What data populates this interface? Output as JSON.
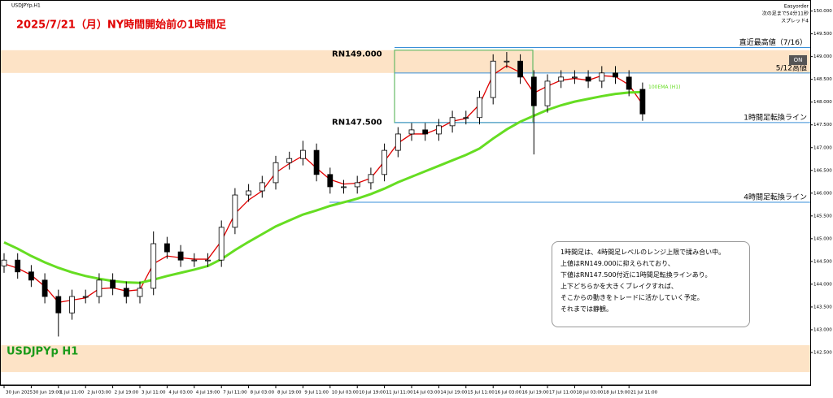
{
  "chart_data": {
    "type": "candlestick",
    "symbol": "USDJPYp,H1",
    "title": "2025/7/21（月）NY時間開始前の1時間足",
    "watermark": "USDJPYp H1",
    "top_right": [
      "Easyorder",
      "次の足まで54分11秒",
      "スプレッド4"
    ],
    "button": "ON",
    "ylim": [
      142.0,
      150.1
    ],
    "yticks": [
      {
        "value": 142.5,
        "label": "142.500"
      },
      {
        "value": 143.0,
        "label": "143.000"
      },
      {
        "value": 143.5,
        "label": "143.500"
      },
      {
        "value": 144.0,
        "label": "144.000"
      },
      {
        "value": 144.5,
        "label": "144.500"
      },
      {
        "value": 145.0,
        "label": "145.000"
      },
      {
        "value": 145.5,
        "label": "145.500"
      },
      {
        "value": 146.0,
        "label": "146.000"
      },
      {
        "value": 146.5,
        "label": "146.500"
      },
      {
        "value": 147.0,
        "label": "147.000"
      },
      {
        "value": 147.5,
        "label": "147.500"
      },
      {
        "value": 148.0,
        "label": "148.000"
      },
      {
        "value": 148.5,
        "label": "148.500"
      },
      {
        "value": 149.0,
        "label": "149.000"
      },
      {
        "value": 149.5,
        "label": "149.500"
      },
      {
        "value": 150.0,
        "label": "150.000"
      }
    ],
    "x_labels": [
      "30 Jun 2025",
      "30 Jun 19:00",
      "1 Jul 11:00",
      "2 Jul 03:00",
      "2 Jul 19:00",
      "3 Jul 11:00",
      "4 Jul 03:00",
      "4 Jul 19:00",
      "7 Jul 11:00",
      "8 Jul 03:00",
      "8 Jul 19:00",
      "9 Jul 11:00",
      "10 Jul 03:00",
      "10 Jul 19:00",
      "11 Jul 11:00",
      "14 Jul 03:00",
      "14 Jul 19:00",
      "15 Jul 11:00",
      "16 Jul 03:00",
      "16 Jul 19:00",
      "17 Jul 11:00",
      "18 Jul 03:00",
      "18 Jul 19:00",
      "21 Jul 11:00"
    ],
    "open": [
      144.4,
      144.53,
      144.27,
      144.09,
      143.73,
      143.37,
      143.73,
      143.73,
      144.09,
      143.91,
      143.73,
      143.91,
      144.89,
      144.71,
      144.53,
      144.53,
      144.53,
      145.25,
      145.96,
      146.05,
      146.23,
      146.67,
      146.76,
      146.94,
      146.41,
      146.14,
      146.14,
      146.23,
      146.41,
      146.94,
      147.3,
      147.39,
      147.3,
      147.48,
      147.66,
      147.66,
      148.1,
      148.9,
      148.9,
      148.55,
      147.92,
      148.46,
      148.55,
      148.55,
      148.46,
      148.64,
      148.55,
      148.28
    ],
    "high": [
      144.68,
      144.68,
      144.42,
      144.24,
      143.88,
      143.88,
      143.88,
      144.24,
      144.24,
      144.06,
      144.06,
      145.16,
      145.04,
      144.86,
      144.68,
      144.68,
      145.4,
      146.11,
      146.2,
      146.38,
      146.82,
      146.91,
      147.15,
      147.09,
      146.56,
      146.29,
      146.38,
      146.56,
      147.09,
      147.45,
      147.54,
      147.54,
      147.63,
      147.81,
      147.81,
      148.25,
      149.05,
      149.1,
      149.05,
      148.7,
      148.61,
      148.7,
      148.7,
      148.7,
      148.79,
      148.79,
      148.7,
      148.43
    ],
    "low": [
      144.25,
      144.12,
      143.94,
      143.58,
      142.85,
      143.22,
      143.58,
      143.58,
      143.76,
      143.58,
      143.58,
      143.76,
      144.56,
      144.38,
      144.38,
      144.38,
      144.38,
      145.1,
      145.81,
      145.9,
      146.08,
      146.52,
      146.61,
      146.26,
      145.99,
      145.99,
      145.99,
      146.08,
      146.26,
      146.79,
      147.15,
      147.15,
      147.15,
      147.33,
      147.51,
      147.51,
      147.95,
      148.75,
      148.4,
      146.85,
      147.77,
      148.31,
      148.4,
      148.31,
      148.31,
      148.4,
      148.13,
      147.59
    ],
    "close": [
      144.53,
      144.27,
      144.09,
      143.73,
      143.37,
      143.73,
      143.73,
      144.09,
      143.91,
      143.73,
      143.91,
      144.89,
      144.71,
      144.53,
      144.53,
      144.53,
      145.25,
      145.96,
      146.05,
      146.23,
      146.67,
      146.76,
      146.94,
      146.41,
      146.14,
      146.14,
      146.23,
      146.41,
      146.94,
      147.3,
      147.39,
      147.3,
      147.48,
      147.66,
      147.66,
      148.1,
      148.9,
      148.9,
      148.55,
      147.92,
      148.46,
      148.55,
      148.55,
      148.46,
      148.64,
      148.55,
      148.28,
      147.74
    ],
    "lines": [
      {
        "color": "#e00000",
        "values": [
          144.45,
          144.35,
          144.2,
          143.95,
          143.6,
          143.65,
          143.7,
          143.9,
          143.92,
          143.85,
          143.88,
          144.45,
          144.62,
          144.58,
          144.55,
          144.55,
          144.95,
          145.55,
          145.85,
          146.05,
          146.45,
          146.65,
          146.82,
          146.55,
          146.3,
          146.2,
          146.22,
          146.33,
          146.7,
          147.1,
          147.3,
          147.3,
          147.42,
          147.58,
          147.64,
          147.95,
          148.6,
          148.8,
          148.65,
          148.2,
          148.35,
          148.48,
          148.52,
          148.48,
          148.58,
          148.56,
          148.38,
          147.95
        ]
      },
      {
        "name": "100EMA (H1)",
        "color": "#66dd22",
        "values": [
          144.92,
          144.78,
          144.62,
          144.48,
          144.36,
          144.26,
          144.18,
          144.12,
          144.07,
          144.04,
          144.03,
          144.1,
          144.18,
          144.25,
          144.32,
          144.4,
          144.55,
          144.75,
          144.93,
          145.1,
          145.27,
          145.4,
          145.53,
          145.62,
          145.72,
          145.8,
          145.88,
          145.98,
          146.1,
          146.24,
          146.36,
          146.48,
          146.6,
          146.72,
          146.84,
          146.98,
          147.2,
          147.4,
          147.57,
          147.7,
          147.83,
          147.93,
          148.01,
          148.07,
          148.13,
          148.18,
          148.21,
          148.22
        ]
      }
    ],
    "zones": [
      {
        "top": 149.14,
        "bottom": 148.64,
        "color": "#fde3c6"
      },
      {
        "top": 142.66,
        "bottom": 142.07,
        "color": "#fde3c6"
      }
    ],
    "levels": [
      {
        "value": 149.2,
        "label": "直近最高値（7/16）"
      },
      {
        "value": 148.64,
        "label": "5/12高値"
      },
      {
        "value": 147.55,
        "label": "1時間足転換ライン"
      },
      {
        "value": 145.8,
        "label": "4時間足転換ライン"
      }
    ],
    "round_numbers": [
      {
        "value": 149.0,
        "label": "RN149.000"
      },
      {
        "value": 147.5,
        "label": "RN147.500"
      }
    ],
    "range_box": {
      "top": 149.14,
      "bottom": 147.55,
      "color": "#66bb66"
    },
    "note": [
      "1時間足は、4時間足レベルのレンジ上限で揉み合い中。",
      "上値はRN149.000に抑えられており、",
      "下値はRN147.500付近に1時間足転換ラインあり。",
      "上下どちらかを大きくブレイクすれば、",
      "そこからの動きをトレードに活かしていく予定。",
      "それまでは静観。"
    ]
  }
}
